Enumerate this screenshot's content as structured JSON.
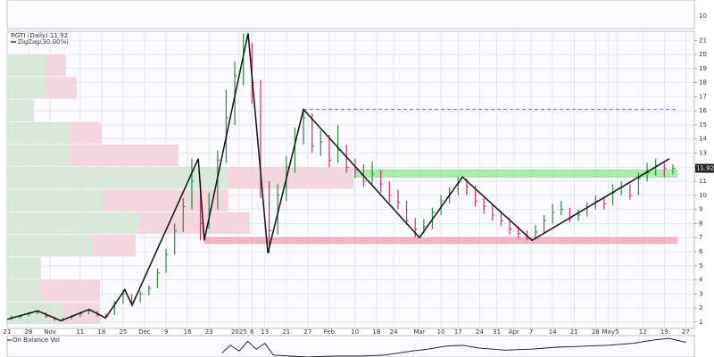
{
  "chart_data": {
    "type": "hlc",
    "title": "RGTI (Daily) 11.92",
    "ylim": [
      0.55,
      21.65
    ],
    "yticks": [
      1,
      2,
      3,
      4,
      5,
      6,
      7,
      8,
      9,
      10,
      11,
      12,
      13,
      14,
      15,
      16,
      17,
      18,
      19,
      20,
      21
    ],
    "xlim": [
      0,
      160
    ],
    "xticks": [
      {
        "value": 0,
        "label": "21"
      },
      {
        "value": 5,
        "label": "28"
      },
      {
        "value": 10,
        "label": "Nov"
      },
      {
        "value": 17,
        "label": "11"
      },
      {
        "value": 22,
        "label": "18"
      },
      {
        "value": 27,
        "label": "25"
      },
      {
        "value": 32,
        "label": "Dec"
      },
      {
        "value": 37,
        "label": "9"
      },
      {
        "value": 42,
        "label": "16"
      },
      {
        "value": 47,
        "label": "23"
      },
      {
        "value": 54,
        "label": "2025"
      },
      {
        "value": 57,
        "label": "6"
      },
      {
        "value": 60,
        "label": "13"
      },
      {
        "value": 65,
        "label": "21"
      },
      {
        "value": 70,
        "label": "27"
      },
      {
        "value": 75,
        "label": "Feb"
      },
      {
        "value": 81,
        "label": "10"
      },
      {
        "value": 86,
        "label": "18"
      },
      {
        "value": 90,
        "label": "24"
      },
      {
        "value": 96,
        "label": "Mar"
      },
      {
        "value": 101,
        "label": "10"
      },
      {
        "value": 105,
        "label": "17"
      },
      {
        "value": 110,
        "label": "24"
      },
      {
        "value": 114,
        "label": "31"
      },
      {
        "value": 118,
        "label": "Apr"
      },
      {
        "value": 122,
        "label": "7"
      },
      {
        "value": 127,
        "label": "14"
      },
      {
        "value": 132,
        "label": "21"
      },
      {
        "value": 137,
        "label": "28"
      },
      {
        "value": 140,
        "label": "May"
      },
      {
        "value": 142,
        "label": "5"
      },
      {
        "value": 148,
        "label": "12"
      },
      {
        "value": 153,
        "label": "19"
      },
      {
        "value": 158,
        "label": "27"
      }
    ],
    "grid": true,
    "up_color": "#2e8b3e",
    "down_color": "#d0306a",
    "ohlc": {
      "x": [
        1,
        3,
        5,
        7,
        9,
        11,
        13,
        15,
        17,
        19,
        21,
        23,
        25,
        27,
        29,
        31,
        33,
        35,
        37,
        39,
        41,
        43,
        45,
        47,
        49,
        51,
        53,
        55,
        57,
        59,
        61,
        63,
        65,
        67,
        69,
        71,
        73,
        75,
        77,
        79,
        81,
        83,
        85,
        87,
        89,
        91,
        93,
        95,
        97,
        99,
        101,
        103,
        105,
        107,
        109,
        111,
        113,
        115,
        117,
        119,
        121,
        123,
        125,
        127,
        129,
        131,
        133,
        135,
        137,
        139,
        141,
        143,
        145,
        147,
        149,
        151,
        153,
        155
      ],
      "high": [
        1.45,
        1.5,
        1.7,
        1.85,
        1.7,
        1.4,
        1.3,
        1.5,
        1.75,
        1.95,
        1.8,
        1.6,
        2.5,
        3.3,
        3.0,
        3.2,
        3.6,
        4.8,
        6.2,
        8.0,
        9.8,
        12.6,
        11.0,
        10.2,
        13.2,
        17.5,
        19.5,
        21.5,
        20.8,
        18.2,
        11.0,
        10.8,
        12.8,
        14.8,
        16.1,
        15.8,
        14.6,
        14.3,
        15.0,
        13.6,
        12.6,
        12.2,
        12.4,
        11.8,
        11.0,
        10.4,
        9.6,
        8.4,
        8.3,
        9.1,
        10.0,
        10.6,
        11.3,
        11.2,
        10.7,
        9.8,
        9.4,
        8.9,
        8.4,
        7.8,
        7.5,
        7.9,
        8.6,
        9.4,
        9.6,
        9.1,
        9.0,
        9.5,
        10.0,
        9.9,
        10.8,
        11.0,
        10.8,
        11.6,
        12.3,
        12.6,
        12.3,
        12.2
      ],
      "low": [
        1.15,
        1.25,
        1.4,
        1.55,
        1.3,
        1.1,
        1.05,
        1.2,
        1.35,
        1.55,
        1.4,
        1.3,
        1.5,
        2.3,
        2.2,
        2.4,
        2.9,
        3.4,
        4.5,
        5.8,
        7.4,
        9.0,
        6.8,
        7.6,
        9.0,
        12.3,
        15.0,
        17.8,
        16.5,
        9.8,
        5.9,
        7.2,
        9.6,
        11.6,
        13.6,
        13.0,
        12.8,
        12.0,
        12.3,
        11.6,
        11.2,
        10.6,
        10.8,
        10.2,
        9.5,
        9.0,
        7.9,
        7.0,
        7.3,
        7.6,
        8.6,
        9.4,
        10.0,
        10.0,
        9.2,
        8.7,
        8.2,
        7.8,
        7.2,
        6.9,
        6.8,
        6.9,
        7.3,
        8.0,
        8.6,
        8.1,
        8.2,
        8.5,
        9.0,
        9.0,
        9.3,
        10.0,
        9.7,
        10.0,
        11.0,
        11.4,
        11.3,
        11.5
      ],
      "close": [
        1.3,
        1.4,
        1.6,
        1.7,
        1.4,
        1.2,
        1.2,
        1.4,
        1.6,
        1.8,
        1.5,
        1.4,
        2.3,
        3.0,
        2.4,
        3.0,
        3.4,
        4.5,
        5.8,
        7.5,
        9.2,
        11.0,
        8.0,
        9.0,
        12.5,
        15.5,
        18.5,
        20.3,
        18.0,
        10.5,
        7.5,
        10.0,
        12.0,
        14.0,
        15.5,
        13.5,
        13.8,
        12.5,
        13.2,
        12.0,
        11.8,
        11.0,
        11.5,
        10.8,
        10.0,
        9.5,
        8.2,
        7.6,
        7.8,
        8.8,
        9.6,
        10.2,
        10.9,
        10.6,
        9.6,
        9.2,
        8.6,
        8.2,
        7.6,
        7.3,
        7.0,
        7.4,
        8.2,
        8.8,
        9.0,
        8.4,
        8.6,
        9.2,
        9.6,
        9.4,
        10.2,
        10.6,
        10.0,
        11.2,
        11.6,
        12.1,
        11.9,
        11.92
      ]
    },
    "zigzag": {
      "name": "ZigZag(30.00%)",
      "color": "#111111",
      "x": [
        0,
        7.1,
        12.5,
        19.1,
        22.9,
        27.4,
        29.1,
        44.5,
        45.9,
        56.1,
        60.7,
        69.0,
        96.0,
        106.0,
        122.2,
        154.2
      ],
      "values": [
        1.2,
        1.8,
        1.1,
        1.9,
        1.3,
        3.3,
        2.2,
        12.6,
        6.8,
        21.5,
        5.9,
        16.1,
        7.0,
        11.3,
        6.8,
        12.6
      ]
    },
    "resistance_line": {
      "value": 16.1,
      "x": [
        69,
        156
      ],
      "color": "#6a5acd"
    },
    "green_zone": {
      "low": 11.3,
      "high": 11.8,
      "x": [
        81,
        156
      ],
      "color": "#8ee88e"
    },
    "red_zone": {
      "low": 6.6,
      "high": 7.0,
      "x": [
        46,
        156
      ],
      "color": "#f4a0b0"
    },
    "volume_by_price": {
      "price_low": [
        18.4,
        16.8,
        15.2,
        13.6,
        12.0,
        10.4,
        8.8,
        7.2,
        5.6,
        4.0,
        2.4,
        0.8
      ],
      "price_high": [
        20.0,
        18.4,
        16.8,
        15.2,
        13.6,
        12.0,
        10.4,
        8.8,
        7.2,
        5.6,
        4.0,
        2.4
      ],
      "up": [
        11,
        11,
        7.5,
        17.5,
        17.5,
        62,
        27,
        37,
        24,
        9.5,
        9.5,
        15.5
      ],
      "down": [
        5.5,
        8.5,
        0,
        9,
        30.5,
        35,
        35,
        31,
        12,
        0,
        16.5,
        10.5
      ],
      "xlim": [
        0,
        100
      ],
      "up_color": "#cfe3cf",
      "down_color": "#f3cdd6"
    },
    "upper_panel": {
      "yticks": [
        10
      ]
    },
    "obv": {
      "name": "On Balance Vol",
      "color": "#111111",
      "ylim": [
        0,
        100
      ],
      "x": [
        50,
        52,
        54,
        56,
        58,
        60,
        62,
        66,
        70,
        76,
        82,
        88,
        94,
        98,
        102,
        106,
        110,
        116,
        122,
        128,
        134,
        140,
        146,
        150,
        154,
        158
      ],
      "values": [
        20,
        60,
        30,
        80,
        40,
        70,
        10,
        5,
        0,
        5,
        5,
        10,
        30,
        40,
        55,
        60,
        45,
        35,
        40,
        50,
        55,
        60,
        70,
        85,
        95,
        75
      ]
    }
  }
}
